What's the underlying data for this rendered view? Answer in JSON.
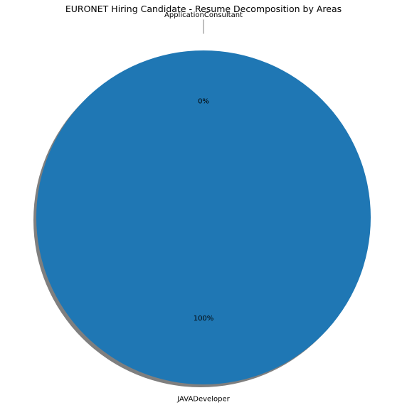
{
  "chart_data": {
    "type": "pie",
    "title": "EURONET Hiring Candidate - Resume Decomposition by Areas",
    "categories": [
      "ApplicationConsultant",
      "JAVADeveloper"
    ],
    "values": [
      0,
      100
    ],
    "pct_labels": [
      "0%",
      "100%"
    ],
    "colors": [
      "#ff7f0e",
      "#1f77b4"
    ],
    "shadow": true,
    "explode": [
      0.1,
      0
    ]
  }
}
